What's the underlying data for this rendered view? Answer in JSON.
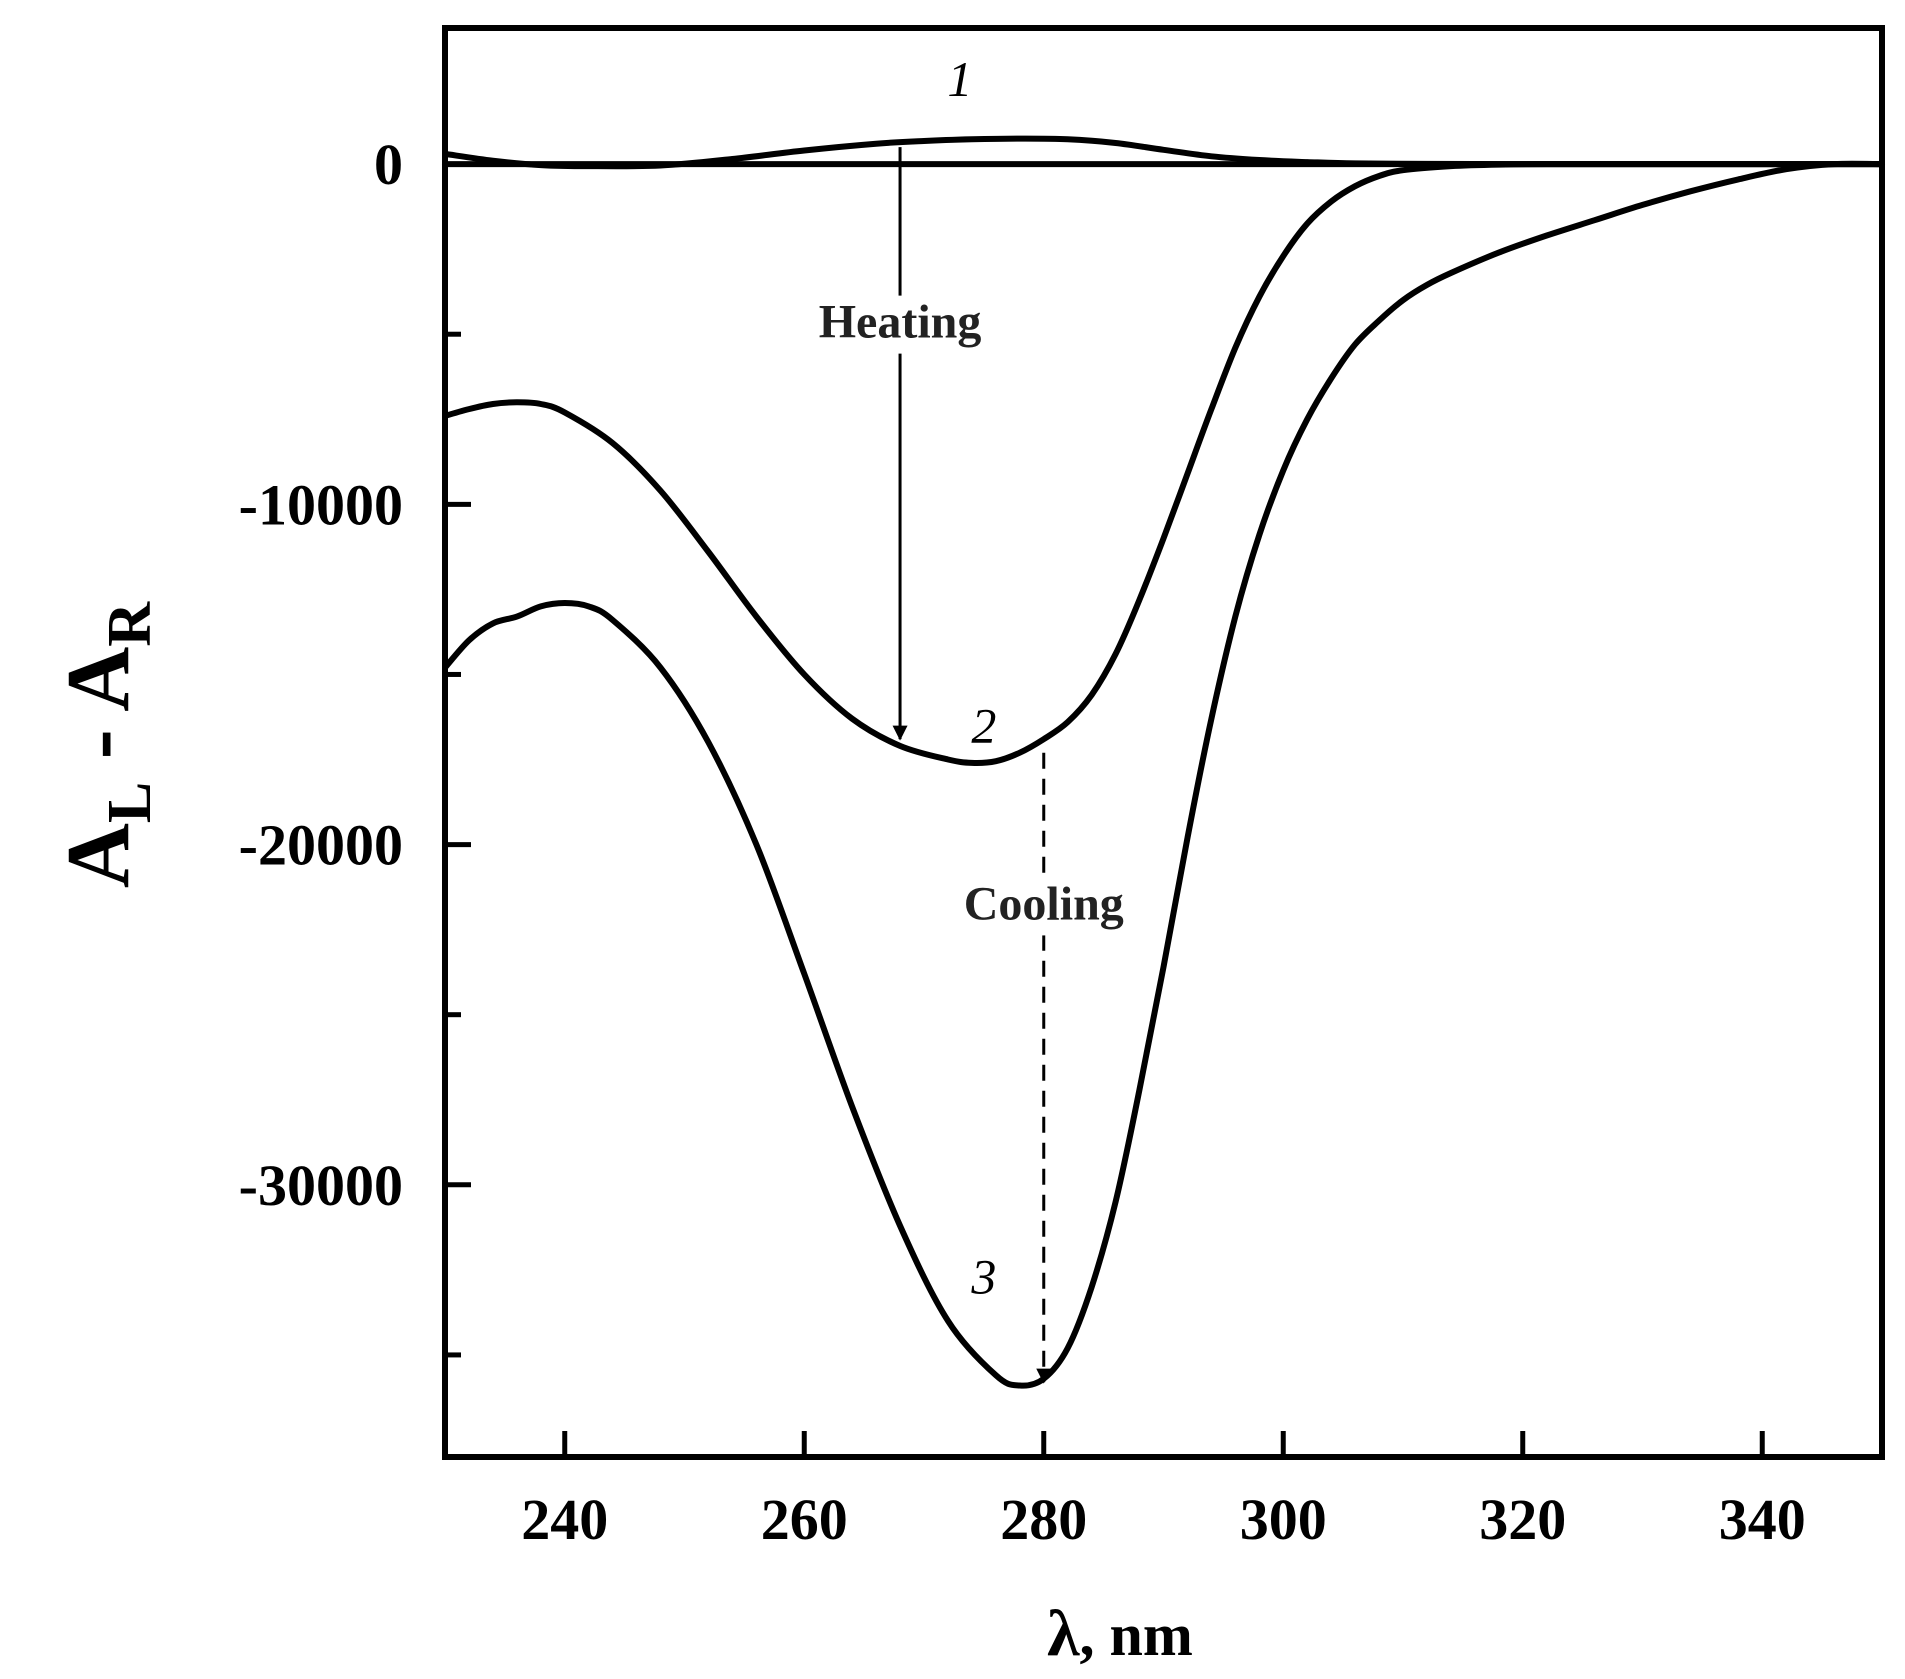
{
  "chart_data": {
    "type": "line",
    "xlabel_symbol": "λ",
    "xlabel_unit": ", nm",
    "ylabel_main_1": "A",
    "ylabel_sub_1": "L",
    "ylabel_sep": " - ",
    "ylabel_main_2": "A",
    "ylabel_sub_2": "R",
    "xlim": [
      230,
      350
    ],
    "ylim": [
      -38000,
      4000
    ],
    "xticks": [
      240,
      260,
      280,
      300,
      320,
      340
    ],
    "xtick_labels": [
      "240",
      "260",
      "280",
      "300",
      "320",
      "340"
    ],
    "yticks_labeled": [
      0,
      -10000,
      -20000,
      -30000
    ],
    "ytick_labels": [
      "0",
      "-10000",
      "-20000",
      "-30000"
    ],
    "yticks_minor": [
      -5000,
      -15000,
      -25000,
      -35000
    ],
    "series": [
      {
        "name": "1",
        "label": "1",
        "label_at": [
          273,
          2000
        ],
        "x": [
          230,
          234,
          238,
          242,
          248,
          254,
          260,
          266,
          270,
          274,
          278,
          282,
          286,
          290,
          294,
          298,
          302,
          306,
          312,
          320,
          330,
          340,
          346,
          350
        ],
        "y": [
          300,
          100,
          -30,
          -60,
          -40,
          150,
          400,
          600,
          680,
          730,
          750,
          730,
          620,
          420,
          230,
          120,
          60,
          20,
          5,
          0,
          0,
          0,
          0,
          0
        ]
      },
      {
        "name": "baseline",
        "label": "",
        "x": [
          230,
          350
        ],
        "y": [
          0,
          0
        ]
      },
      {
        "name": "2",
        "label": "2",
        "label_at": [
          275,
          -17000
        ],
        "x": [
          230,
          232,
          234,
          236,
          238,
          240,
          244,
          248,
          252,
          256,
          260,
          264,
          268,
          272,
          274,
          276,
          278,
          280,
          282,
          284,
          286,
          288,
          290,
          292,
          294,
          296,
          298,
          300,
          302,
          304,
          306,
          308,
          310,
          314,
          318,
          322,
          330,
          340,
          346,
          350
        ],
        "y": [
          -7400,
          -7200,
          -7050,
          -7000,
          -7050,
          -7300,
          -8200,
          -9600,
          -11400,
          -13300,
          -15000,
          -16300,
          -17100,
          -17500,
          -17600,
          -17550,
          -17300,
          -16900,
          -16400,
          -15600,
          -14400,
          -12800,
          -11000,
          -9100,
          -7200,
          -5400,
          -3900,
          -2700,
          -1750,
          -1100,
          -650,
          -350,
          -180,
          -60,
          -15,
          0,
          0,
          0,
          0,
          0
        ]
      },
      {
        "name": "3",
        "label": "3",
        "label_at": [
          275,
          -33200
        ],
        "x": [
          230,
          232,
          234,
          236,
          238,
          240,
          242,
          244,
          248,
          252,
          256,
          260,
          264,
          268,
          272,
          276,
          278,
          280,
          282,
          284,
          286,
          288,
          290,
          292,
          294,
          296,
          298,
          300,
          302,
          304,
          306,
          308,
          310,
          312,
          314,
          318,
          322,
          326,
          330,
          334,
          338,
          342,
          346,
          350
        ],
        "y": [
          -14800,
          -14000,
          -13500,
          -13300,
          -13000,
          -12900,
          -13000,
          -13400,
          -14800,
          -17000,
          -20000,
          -23800,
          -27700,
          -31200,
          -34000,
          -35600,
          -35900,
          -35700,
          -34800,
          -33000,
          -30500,
          -27200,
          -23600,
          -19800,
          -16300,
          -13300,
          -10900,
          -9000,
          -7500,
          -6300,
          -5300,
          -4600,
          -4000,
          -3550,
          -3200,
          -2600,
          -2100,
          -1650,
          -1200,
          -800,
          -450,
          -150,
          0,
          0
        ]
      }
    ],
    "annotations": [
      {
        "text": "Heating",
        "arrow_from": [
          268,
          500
        ],
        "arrow_to": [
          268,
          -16900
        ],
        "style": "solid",
        "text_at": [
          268,
          -5100
        ]
      },
      {
        "text": "Cooling",
        "arrow_from": [
          280,
          -17300
        ],
        "arrow_to": [
          280,
          -35800
        ],
        "style": "dashed",
        "text_at": [
          280,
          -22200
        ]
      }
    ]
  }
}
